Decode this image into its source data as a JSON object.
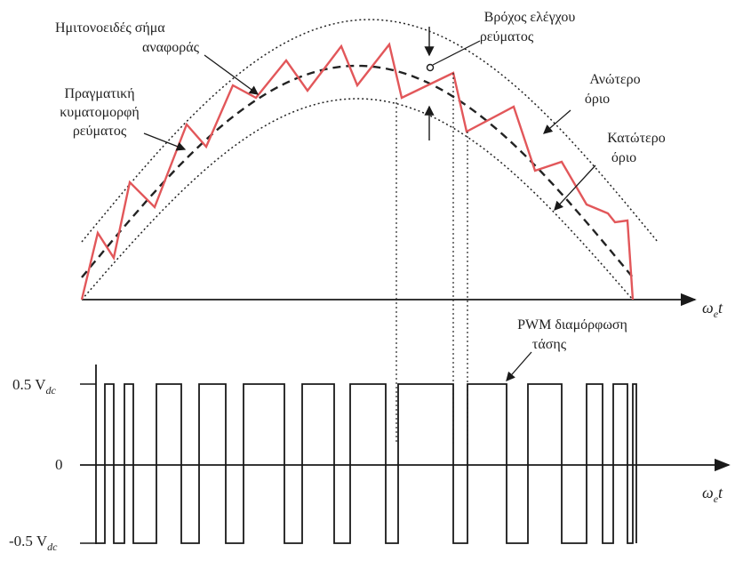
{
  "labels": {
    "reference": [
      "Ημιτονοειδές σήμα",
      "αναφοράς"
    ],
    "actual": [
      "Πραγματική",
      "κυματομορφή",
      "ρεύματος"
    ],
    "loop": [
      "Βρόχος ελέγχου",
      "ρεύματος"
    ],
    "upper": [
      "Ανώτερο",
      "όριο"
    ],
    "lower": [
      "Κατώτερο",
      "όριο"
    ],
    "pwm": [
      "PWM διαμόρφωση",
      "τάσης"
    ]
  },
  "axes": {
    "x_label_top": "ωet",
    "x_label_bottom": "ωet",
    "omega": "ω",
    "sub_e": "e",
    "t": "t",
    "v_pos": "0.5 V",
    "v_neg": "-0.5 V",
    "v_sub": "dc",
    "zero": "0"
  },
  "colors": {
    "current": "#e2575a",
    "lines": "#1a1a1a"
  }
}
